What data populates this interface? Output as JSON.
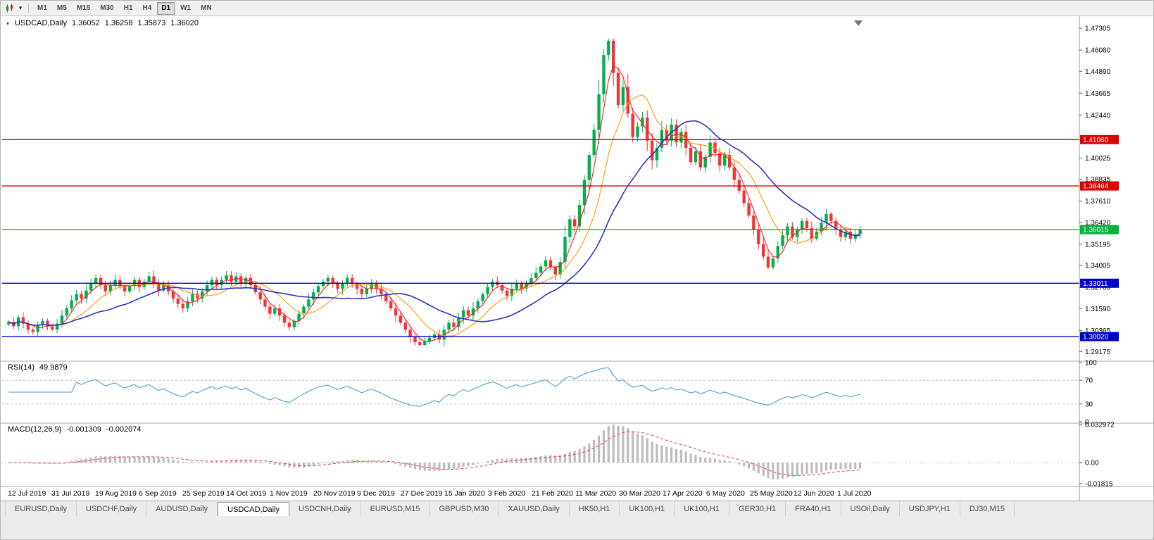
{
  "toolbar": {
    "timeframes": [
      {
        "label": "M1"
      },
      {
        "label": "M5"
      },
      {
        "label": "M15"
      },
      {
        "label": "M30"
      },
      {
        "label": "H1"
      },
      {
        "label": "H4"
      },
      {
        "label": "D1",
        "active": true
      },
      {
        "label": "W1"
      },
      {
        "label": "MN"
      }
    ]
  },
  "header": {
    "symbol": "USDCAD,Daily",
    "open": "1.36052",
    "high": "1.36258",
    "low": "1.35873",
    "close": "1.36020"
  },
  "indicators": {
    "rsi": {
      "label": "RSI(14)",
      "value": "49.9879",
      "levels": [
        70,
        30
      ],
      "axis_labels": [
        "100",
        "70",
        "30",
        "0"
      ]
    },
    "macd": {
      "label": "MACD(12,26,9)",
      "value1": "-0.001309",
      "value2": "-0.002074",
      "axis_labels": [
        "0.032972",
        "0.00",
        "-0.01815"
      ]
    }
  },
  "chart_data": {
    "type": "candlestick",
    "symbol": "USDCAD",
    "timeframe": "Daily",
    "title": "USDCAD,Daily 1.36052 1.36258 1.35873 1.36020",
    "x_labels": [
      "12 Jul 2019",
      "31 Jul 2019",
      "19 Aug 2019",
      "6 Sep 2019",
      "25 Sep 2019",
      "14 Oct 2019",
      "1 Nov 2019",
      "20 Nov 2019",
      "9 Dec 2019",
      "27 Dec 2019",
      "15 Jan 2020",
      "3 Feb 2020",
      "21 Feb 2020",
      "11 Mar 2020",
      "30 Mar 2020",
      "17 Apr 2020",
      "6 May 2020",
      "25 May 2020",
      "12 Jun 2020",
      "1 Jul 2020"
    ],
    "price_axis_ticks": [
      "1.47305",
      "1.46080",
      "1.44890",
      "1.43665",
      "1.42440",
      "1.40025",
      "1.38835",
      "1.37610",
      "1.36420",
      "1.35195",
      "1.34005",
      "1.32780",
      "1.31590",
      "1.30365",
      "1.29175"
    ],
    "price_range": {
      "min": 1.2872,
      "max": 1.479
    },
    "extreme_high": 1.4672,
    "extreme_low": 1.2946,
    "closes": [
      1.3085,
      1.306,
      1.311,
      1.3075,
      1.304,
      1.3028,
      1.3065,
      1.309,
      1.3058,
      1.3042,
      1.3075,
      1.312,
      1.316,
      1.3205,
      1.324,
      1.3215,
      1.326,
      1.33,
      1.333,
      1.329,
      1.3255,
      1.329,
      1.332,
      1.3285,
      1.3255,
      1.329,
      1.332,
      1.328,
      1.331,
      1.334,
      1.33,
      1.326,
      1.329,
      1.3255,
      1.3215,
      1.3185,
      1.316,
      1.32,
      1.324,
      1.3215,
      1.3255,
      1.329,
      1.332,
      1.329,
      1.332,
      1.3345,
      1.331,
      1.334,
      1.33,
      1.333,
      1.329,
      1.325,
      1.321,
      1.317,
      1.313,
      1.316,
      1.312,
      1.308,
      1.3055,
      1.309,
      1.313,
      1.317,
      1.321,
      1.325,
      1.3285,
      1.331,
      1.333,
      1.33,
      1.327,
      1.33,
      1.333,
      1.33,
      1.327,
      1.324,
      1.327,
      1.33,
      1.327,
      1.324,
      1.32,
      1.316,
      1.312,
      1.308,
      1.304,
      1.3,
      1.297,
      1.2955,
      1.2975,
      1.2995,
      1.3015,
      1.2985,
      1.304,
      1.308,
      1.3055,
      1.311,
      1.315,
      1.312,
      1.316,
      1.32,
      1.324,
      1.328,
      1.331,
      1.329,
      1.326,
      1.323,
      1.327,
      1.33,
      1.327,
      1.33,
      1.333,
      1.336,
      1.3395,
      1.343,
      1.339,
      1.335,
      1.342,
      1.356,
      1.366,
      1.362,
      1.374,
      1.388,
      1.402,
      1.416,
      1.436,
      1.458,
      1.466,
      1.448,
      1.43,
      1.44,
      1.425,
      1.412,
      1.418,
      1.423,
      1.41,
      1.399,
      1.406,
      1.416,
      1.41,
      1.419,
      1.409,
      1.415,
      1.406,
      1.398,
      1.404,
      1.395,
      1.401,
      1.409,
      1.403,
      1.396,
      1.402,
      1.395,
      1.388,
      1.382,
      1.375,
      1.368,
      1.36,
      1.352,
      1.345,
      1.339,
      1.344,
      1.351,
      1.357,
      1.362,
      1.356,
      1.36,
      1.365,
      1.361,
      1.355,
      1.359,
      1.364,
      1.369,
      1.365,
      1.36,
      1.356,
      1.359,
      1.355,
      1.3575,
      1.3602
    ],
    "hlines": [
      {
        "price": 1.4106,
        "label": "1.41060",
        "color": "#dd0000",
        "type": "resistance"
      },
      {
        "price": 1.38464,
        "label": "1.38464",
        "color": "#dd0000",
        "type": "resistance"
      },
      {
        "price": 1.36015,
        "label": "1.36015",
        "color": "#00b43c",
        "type": "current-price"
      },
      {
        "price": 1.33011,
        "label": "1.33011",
        "color": "#0000cc",
        "type": "support"
      },
      {
        "price": 1.3002,
        "label": "1.30020",
        "color": "#0000cc",
        "type": "support"
      }
    ],
    "moving_averages": [
      {
        "period": 4,
        "color": "#ff1a1a"
      },
      {
        "period": 10,
        "color": "#ff9900"
      },
      {
        "period": 22,
        "color": "#2b34c8"
      }
    ],
    "macd_range": {
      "max": 0.033,
      "min": -0.01815
    },
    "colors": {
      "up": "#00b050",
      "down": "#ef3535",
      "rsi": "#4f9ed0",
      "macd_hist": "#bdbdbd",
      "macd_signal": "#e83a3a",
      "axis_text": "#000000"
    }
  },
  "tabs": [
    {
      "label": "EURUSD,Daily"
    },
    {
      "label": "USDCHF,Daily"
    },
    {
      "label": "AUDUSD,Daily"
    },
    {
      "label": "USDCAD,Daily",
      "active": true
    },
    {
      "label": "USDCNH,Daily"
    },
    {
      "label": "EURUSD,M15"
    },
    {
      "label": "GBPUSD,M30"
    },
    {
      "label": "XAUUSD,Daily"
    },
    {
      "label": "HK50,H1"
    },
    {
      "label": "UK100,H1"
    },
    {
      "label": "UK100,H1"
    },
    {
      "label": "GER30,H1"
    },
    {
      "label": "FRA40,H1"
    },
    {
      "label": "USOil,Daily"
    },
    {
      "label": "USDJPY,H1"
    },
    {
      "label": "DJ30,M15"
    }
  ]
}
